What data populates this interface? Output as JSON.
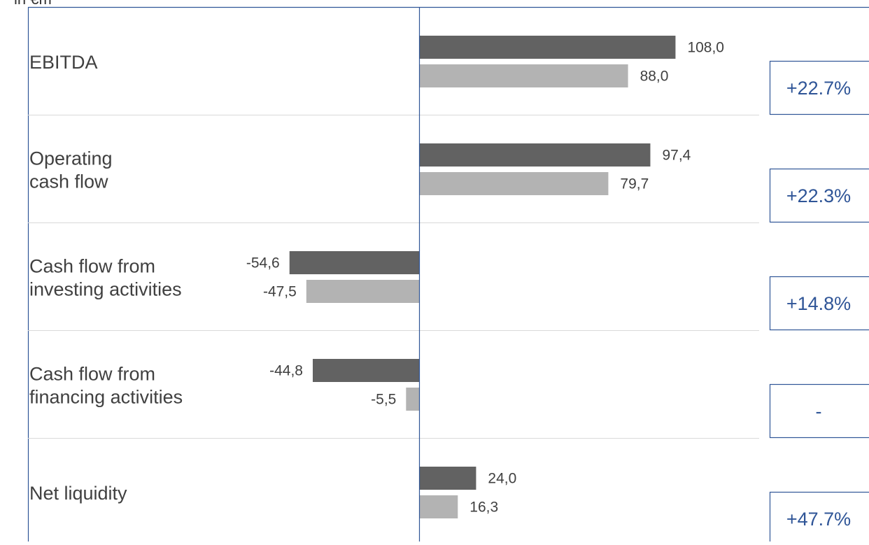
{
  "colors": {
    "current": "#626262",
    "previous": "#b3b3b3",
    "axis": "#2f5597",
    "separator": "#d9d9d9",
    "box_border": "#2f5597",
    "change_text": "#2f5597"
  },
  "unit_label": "in €m",
  "chart_data": {
    "type": "bar",
    "orientation": "horizontal",
    "categories": [
      "EBITDA",
      "Operating cash flow",
      "Cash flow from investing activities",
      "Cash flow from financing activities",
      "Net liquidity"
    ],
    "category_lines": [
      [
        "EBITDA"
      ],
      [
        "Operating",
        "cash flow"
      ],
      [
        "Cash flow from",
        "investing activities"
      ],
      [
        "Cash flow from",
        "financing activities"
      ],
      [
        "Net liquidity"
      ]
    ],
    "series": [
      {
        "values": [
          108.0,
          97.4,
          -54.6,
          -44.8,
          24.0
        ],
        "labels": [
          "108,0",
          "97,4",
          "-54,6",
          "-44,8",
          "24,0"
        ]
      },
      {
        "values": [
          88.0,
          79.7,
          -47.5,
          -5.5,
          16.3
        ],
        "labels": [
          "88,0",
          "79,7",
          "-47,5",
          "-5,5",
          "16,3"
        ]
      }
    ],
    "changes": [
      "+22.7%",
      "+22.3%",
      "+14.8%",
      "-",
      "+47.7%"
    ],
    "grid": false
  }
}
